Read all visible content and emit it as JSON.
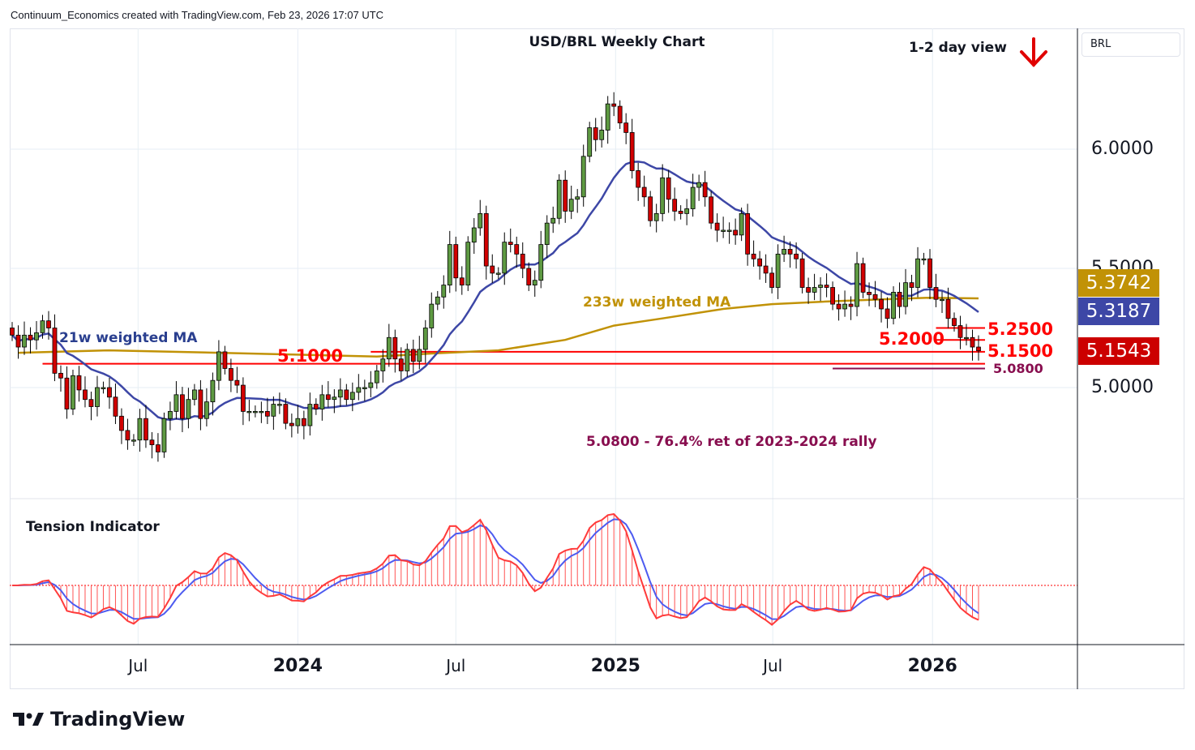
{
  "header": "Continuum_Economics created with TradingView.com, Feb 23, 2026 17:07 UTC",
  "symbol_box": "BRL",
  "logo_text": "TradingView",
  "chart_data": {
    "type": "candlestick",
    "title": "USD/BRL Weekly Chart",
    "view_label": "1-2 day view",
    "view_direction": "down",
    "interval": "weekly",
    "last_week": "2026-02-23",
    "closes": [
      5.22,
      5.17,
      5.22,
      5.2,
      5.23,
      5.28,
      5.25,
      5.06,
      5.04,
      4.91,
      5.05,
      4.99,
      4.95,
      4.92,
      5.0,
      5.0,
      4.96,
      4.88,
      4.82,
      4.78,
      4.78,
      4.87,
      4.78,
      4.76,
      4.73,
      4.87,
      4.9,
      4.97,
      4.87,
      4.95,
      4.99,
      4.87,
      4.94,
      5.03,
      5.15,
      5.08,
      5.03,
      5.01,
      4.9,
      4.9,
      4.9,
      4.9,
      4.88,
      4.93,
      4.93,
      4.85,
      4.84,
      4.87,
      4.84,
      4.93,
      4.91,
      4.97,
      4.95,
      4.96,
      4.99,
      4.95,
      4.98,
      5.0,
      5.0,
      5.02,
      5.07,
      5.12,
      5.21,
      5.12,
      5.07,
      5.16,
      5.11,
      5.16,
      5.25,
      5.35,
      5.38,
      5.43,
      5.6,
      5.46,
      5.43,
      5.61,
      5.67,
      5.73,
      5.51,
      5.48,
      5.48,
      5.61,
      5.6,
      5.56,
      5.5,
      5.43,
      5.45,
      5.6,
      5.69,
      5.71,
      5.87,
      5.74,
      5.79,
      5.8,
      5.97,
      6.09,
      6.04,
      6.08,
      6.19,
      6.18,
      6.11,
      6.07,
      5.91,
      5.84,
      5.8,
      5.7,
      5.73,
      5.88,
      5.79,
      5.74,
      5.73,
      5.75,
      5.84,
      5.86,
      5.8,
      5.69,
      5.66,
      5.66,
      5.66,
      5.64,
      5.73,
      5.56,
      5.54,
      5.51,
      5.48,
      5.42,
      5.56,
      5.58,
      5.56,
      5.54,
      5.42,
      5.4,
      5.42,
      5.43,
      5.42,
      5.35,
      5.33,
      5.35,
      5.34,
      5.52,
      5.4,
      5.39,
      5.37,
      5.33,
      5.29,
      5.4,
      5.34,
      5.44,
      5.42,
      5.54,
      5.54,
      5.42,
      5.37,
      5.37,
      5.29,
      5.26,
      5.21,
      5.21,
      5.17,
      5.1543
    ],
    "ma233": [
      {
        "date": "2023-02-13",
        "value": 5.146
      },
      {
        "date": "2023-05-29",
        "value": 5.156
      },
      {
        "date": "2023-10-02",
        "value": 5.146
      },
      {
        "date": "2024-04-01",
        "value": 5.13
      },
      {
        "date": "2024-06-03",
        "value": 5.143
      },
      {
        "date": "2024-08-19",
        "value": 5.156
      },
      {
        "date": "2024-11-04",
        "value": 5.2
      },
      {
        "date": "2024-12-30",
        "value": 5.26
      },
      {
        "date": "2025-02-24",
        "value": 5.29
      },
      {
        "date": "2025-05-05",
        "value": 5.33
      },
      {
        "date": "2025-06-30",
        "value": 5.35
      },
      {
        "date": "2025-08-25",
        "value": 5.36
      },
      {
        "date": "2025-11-03",
        "value": 5.37
      },
      {
        "date": "2025-12-29",
        "value": 5.377
      },
      {
        "date": "2026-02-23",
        "value": 5.3742
      }
    ],
    "series_labels": {
      "ma21": "21w weighted MA",
      "ma233": "233w weighted MA"
    },
    "last_values": {
      "ma233": "5.3742",
      "ma21": "5.3187",
      "close": "5.1543"
    },
    "y_ticks": [
      "6.0000",
      "5.5000",
      "5.0000"
    ],
    "ylim": [
      4.6,
      6.45
    ],
    "x_ticks": [
      {
        "label": "Jul",
        "date": "2023-07-01",
        "bold": false
      },
      {
        "label": "2024",
        "date": "2024-01-01",
        "bold": true
      },
      {
        "label": "Jul",
        "date": "2024-07-01",
        "bold": false
      },
      {
        "label": "2025",
        "date": "2025-01-01",
        "bold": true
      },
      {
        "label": "Jul",
        "date": "2025-07-01",
        "bold": false
      },
      {
        "label": "2026",
        "date": "2026-01-01",
        "bold": true
      }
    ],
    "levels": {
      "l5100": {
        "value": 5.1,
        "label": "5.1000",
        "from": "2023-03-13"
      },
      "l5150": {
        "value": 5.15,
        "label": "5.1500",
        "from": "2024-03-25"
      },
      "l5200": {
        "value": 5.2,
        "label": "5.2000",
        "from": "2026-01-05"
      },
      "l5250": {
        "value": 5.25,
        "label": "5.2500",
        "from": "2026-01-05"
      },
      "l5080": {
        "value": 5.08,
        "label": "5.0800",
        "from": "2025-09-08"
      }
    },
    "annotation": "5.0800 - 76.4% ret of 2023-2024 rally",
    "indicator_title": "Tension Indicator",
    "colors": {
      "up": "#5e9a42",
      "down": "#d10000",
      "ma21": "#3d47a6",
      "ma233": "#c19206",
      "level": "#ff0000",
      "retracement": "#880e4f",
      "grid": "#e6eef4"
    },
    "grid": true
  }
}
